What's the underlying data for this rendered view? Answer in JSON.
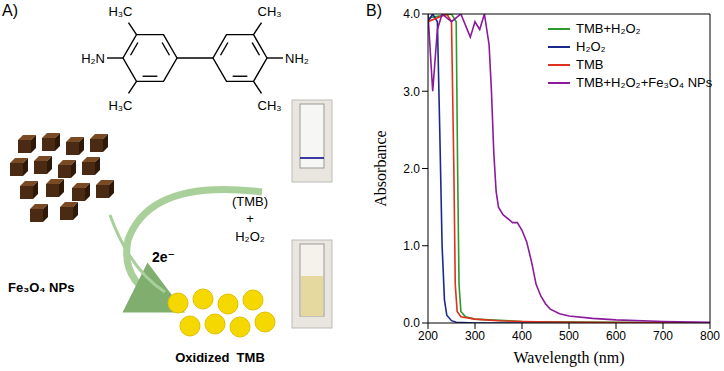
{
  "panel_labels": [
    "A)",
    "B)"
  ],
  "diagram": {
    "structure": {
      "methyl_top_left": "H₃C",
      "methyl_top_right": "CH₃",
      "amine_left": "H₂N",
      "amine_right": "NH₂",
      "methyl_bottom_left": "H₃C",
      "methyl_bottom_right": "CH₃"
    },
    "reagents": [
      "(TMB)",
      "+",
      "H₂O₂"
    ],
    "electrons": "2e⁻",
    "catalyst": "Fe₃O₄ NPs",
    "product": "Oxidized  TMB"
  },
  "chart_data": {
    "type": "line",
    "x_label": "Wavelength (nm)",
    "y_label": "Absorbance",
    "xlim": [
      200,
      800
    ],
    "xticks": [
      200,
      300,
      400,
      500,
      600,
      700,
      800
    ],
    "ylim": [
      0,
      4
    ],
    "yticks": [
      {
        "value": 0,
        "label": "0.0"
      },
      {
        "value": 1,
        "label": "1.0"
      },
      {
        "value": 2,
        "label": "2.0"
      },
      {
        "value": 3,
        "label": "3.0"
      },
      {
        "value": 4,
        "label": "4.0"
      }
    ],
    "grid": false,
    "legend": "upper right",
    "series": [
      {
        "name": "TMB+H₂O₂",
        "color": "#2e9a2e",
        "x": [
          200,
          250,
          260,
          263,
          266,
          270,
          280,
          300,
          400,
          800
        ],
        "values": [
          3.95,
          4.0,
          3.9,
          2.0,
          0.5,
          0.15,
          0.08,
          0.05,
          0.02,
          0.0
        ]
      },
      {
        "name": "H₂O₂",
        "color": "#1a2a8c",
        "x": [
          200,
          210,
          220,
          225,
          230,
          235,
          240,
          250,
          260,
          300,
          800
        ],
        "values": [
          3.9,
          4.0,
          3.9,
          2.5,
          1.0,
          0.3,
          0.1,
          0.03,
          0.01,
          0.0,
          0.0
        ]
      },
      {
        "name": "TMB",
        "color": "#e0301e",
        "x": [
          200,
          240,
          250,
          255,
          258,
          262,
          270,
          300,
          350,
          400,
          500,
          800
        ],
        "values": [
          3.9,
          4.0,
          3.9,
          2.0,
          0.5,
          0.15,
          0.08,
          0.05,
          0.03,
          0.02,
          0.01,
          0.0
        ]
      },
      {
        "name": "TMB+H₂O₂+Fe₃O₄ NPs",
        "color": "#8b1a9c",
        "x": [
          200,
          210,
          220,
          230,
          250,
          270,
          290,
          300,
          310,
          320,
          330,
          335,
          340,
          345,
          350,
          360,
          370,
          380,
          390,
          400,
          410,
          420,
          430,
          440,
          450,
          460,
          480,
          500,
          550,
          600,
          700,
          800
        ],
        "values": [
          4.0,
          3.0,
          3.8,
          4.0,
          3.9,
          4.0,
          3.7,
          3.9,
          3.8,
          4.0,
          3.6,
          3.0,
          2.2,
          1.7,
          1.5,
          1.4,
          1.35,
          1.3,
          1.3,
          1.2,
          1.05,
          0.8,
          0.5,
          0.35,
          0.25,
          0.18,
          0.12,
          0.09,
          0.06,
          0.04,
          0.02,
          0.01
        ]
      }
    ]
  }
}
